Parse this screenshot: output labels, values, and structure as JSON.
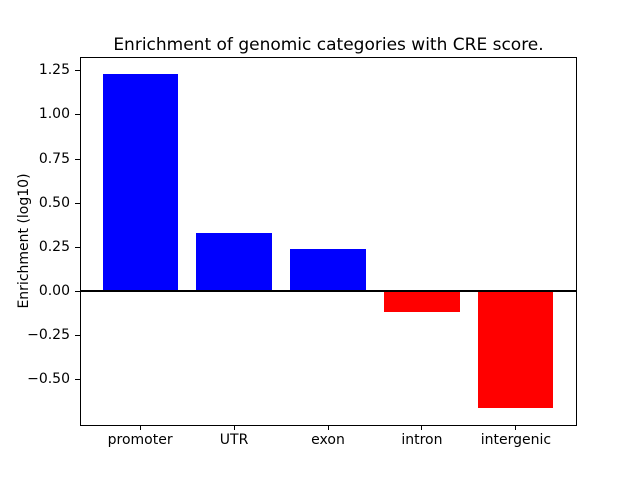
{
  "chart_data": {
    "type": "bar",
    "title": "Enrichment of genomic categories with CRE score.",
    "xlabel": "",
    "ylabel": "Enrichment (log10)",
    "categories": [
      "promoter",
      "UTR",
      "exon",
      "intron",
      "intergenic"
    ],
    "values": [
      1.23,
      0.33,
      0.24,
      -0.12,
      -0.66
    ],
    "yticks": [
      1.25,
      1.0,
      0.75,
      0.5,
      0.25,
      0.0,
      -0.25,
      -0.5
    ],
    "ytick_labels": [
      "1.25",
      "1.00",
      "0.75",
      "0.50",
      "0.25",
      "0.00",
      "−0.25",
      "−0.50"
    ],
    "ylim": [
      -0.755,
      1.325
    ],
    "xlim": [
      -0.64,
      4.64
    ],
    "bar_width": 0.8,
    "positive_color": "#0000ff",
    "negative_color": "#ff0000",
    "zero_line": true,
    "grid": false,
    "legend": null
  }
}
